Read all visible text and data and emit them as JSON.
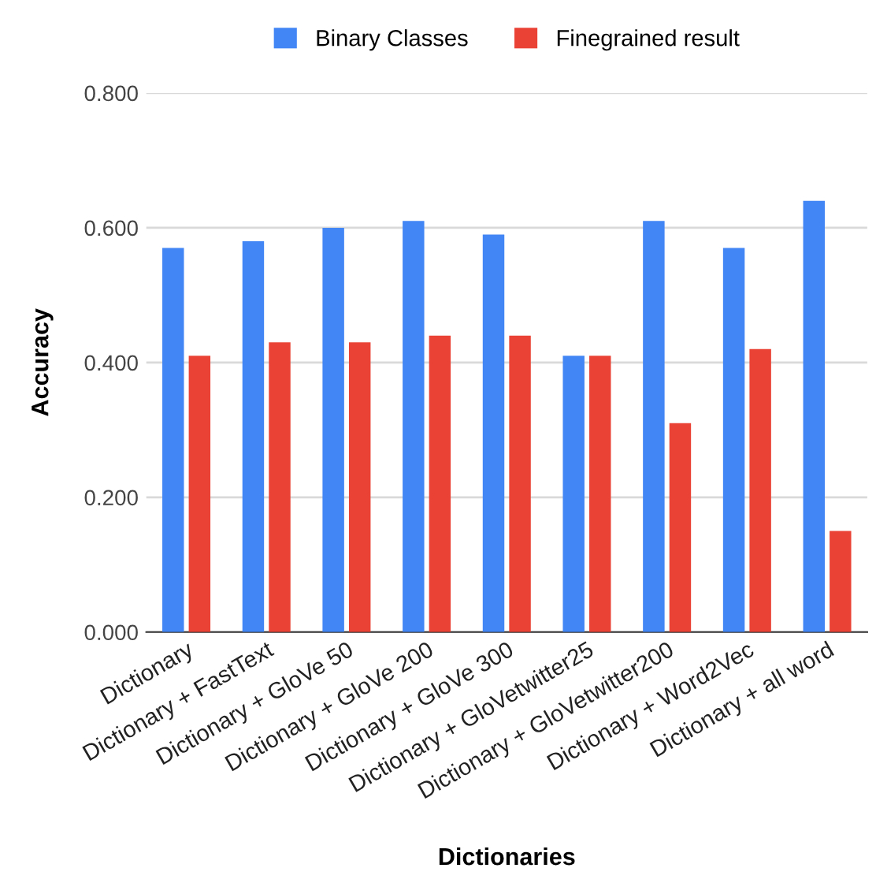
{
  "chart_data": {
    "type": "bar",
    "categories": [
      "Dictionary",
      "Dictionary + FastText",
      "Dictionary + GloVe 50",
      "Dictionary + GloVe 200",
      "Dictionary + GloVe 300",
      "Dictionary + GloVetwitter25",
      "Dictionary + GloVetwitter200",
      "Dictionary + Word2Vec",
      "Dictionary + all word"
    ],
    "series": [
      {
        "name": "Binary Classes",
        "color": "#4285f4",
        "values": [
          0.57,
          0.58,
          0.6,
          0.61,
          0.59,
          0.41,
          0.61,
          0.57,
          0.64
        ]
      },
      {
        "name": "Finegrained result",
        "color": "#ea4335",
        "values": [
          0.41,
          0.43,
          0.43,
          0.44,
          0.44,
          0.41,
          0.31,
          0.42,
          0.15
        ]
      }
    ],
    "xlabel": "Dictionaries",
    "ylabel": "Accuracy",
    "ylim": [
      0,
      0.8
    ],
    "yticks": [
      {
        "value": 0,
        "label": "0.000"
      },
      {
        "value": 0.2,
        "label": "0.200"
      },
      {
        "value": 0.4,
        "label": "0.400"
      },
      {
        "value": 0.6,
        "label": "0.600"
      },
      {
        "value": 0.8,
        "label": "0.800"
      }
    ],
    "grid": "y",
    "legend": "top"
  }
}
